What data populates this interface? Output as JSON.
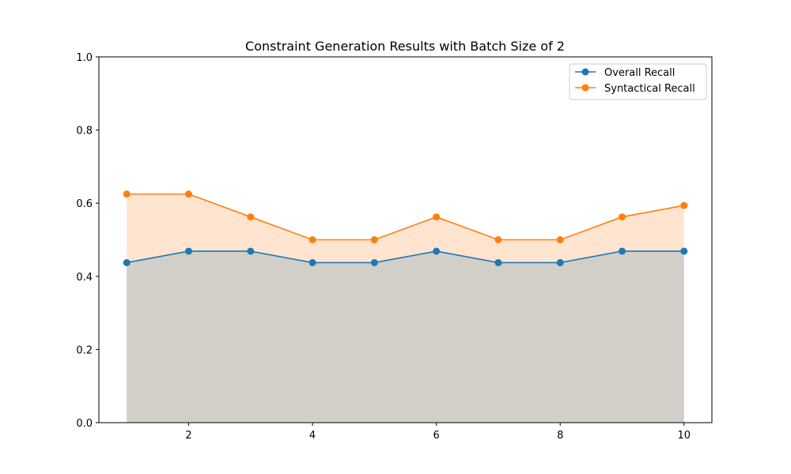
{
  "chart_data": {
    "type": "line",
    "title": "Constraint Generation Results with Batch Size of 2",
    "xlabel": "",
    "ylabel": "",
    "x": [
      1,
      2,
      3,
      4,
      5,
      6,
      7,
      8,
      9,
      10
    ],
    "xlim": [
      0.55,
      10.45
    ],
    "ylim": [
      0,
      1
    ],
    "xticks": [
      2,
      4,
      6,
      8,
      10
    ],
    "yticks": [
      "0.0",
      "0.2",
      "0.4",
      "0.6",
      "0.8",
      "1.0"
    ],
    "grid": false,
    "legend_position": "top-right",
    "fill_under": true,
    "series": [
      {
        "name": "Overall Recall",
        "color": "#1f77b4",
        "fill_color": "#1f77b4",
        "values": [
          0.4375,
          0.46875,
          0.46875,
          0.4375,
          0.4375,
          0.46875,
          0.4375,
          0.4375,
          0.46875,
          0.46875
        ]
      },
      {
        "name": "Syntactical Recall",
        "color": "#ff7f0e",
        "fill_color": "#ffbd88",
        "values": [
          0.625,
          0.625,
          0.5625,
          0.5,
          0.5,
          0.5625,
          0.5,
          0.5,
          0.5625,
          0.59375
        ]
      }
    ]
  }
}
